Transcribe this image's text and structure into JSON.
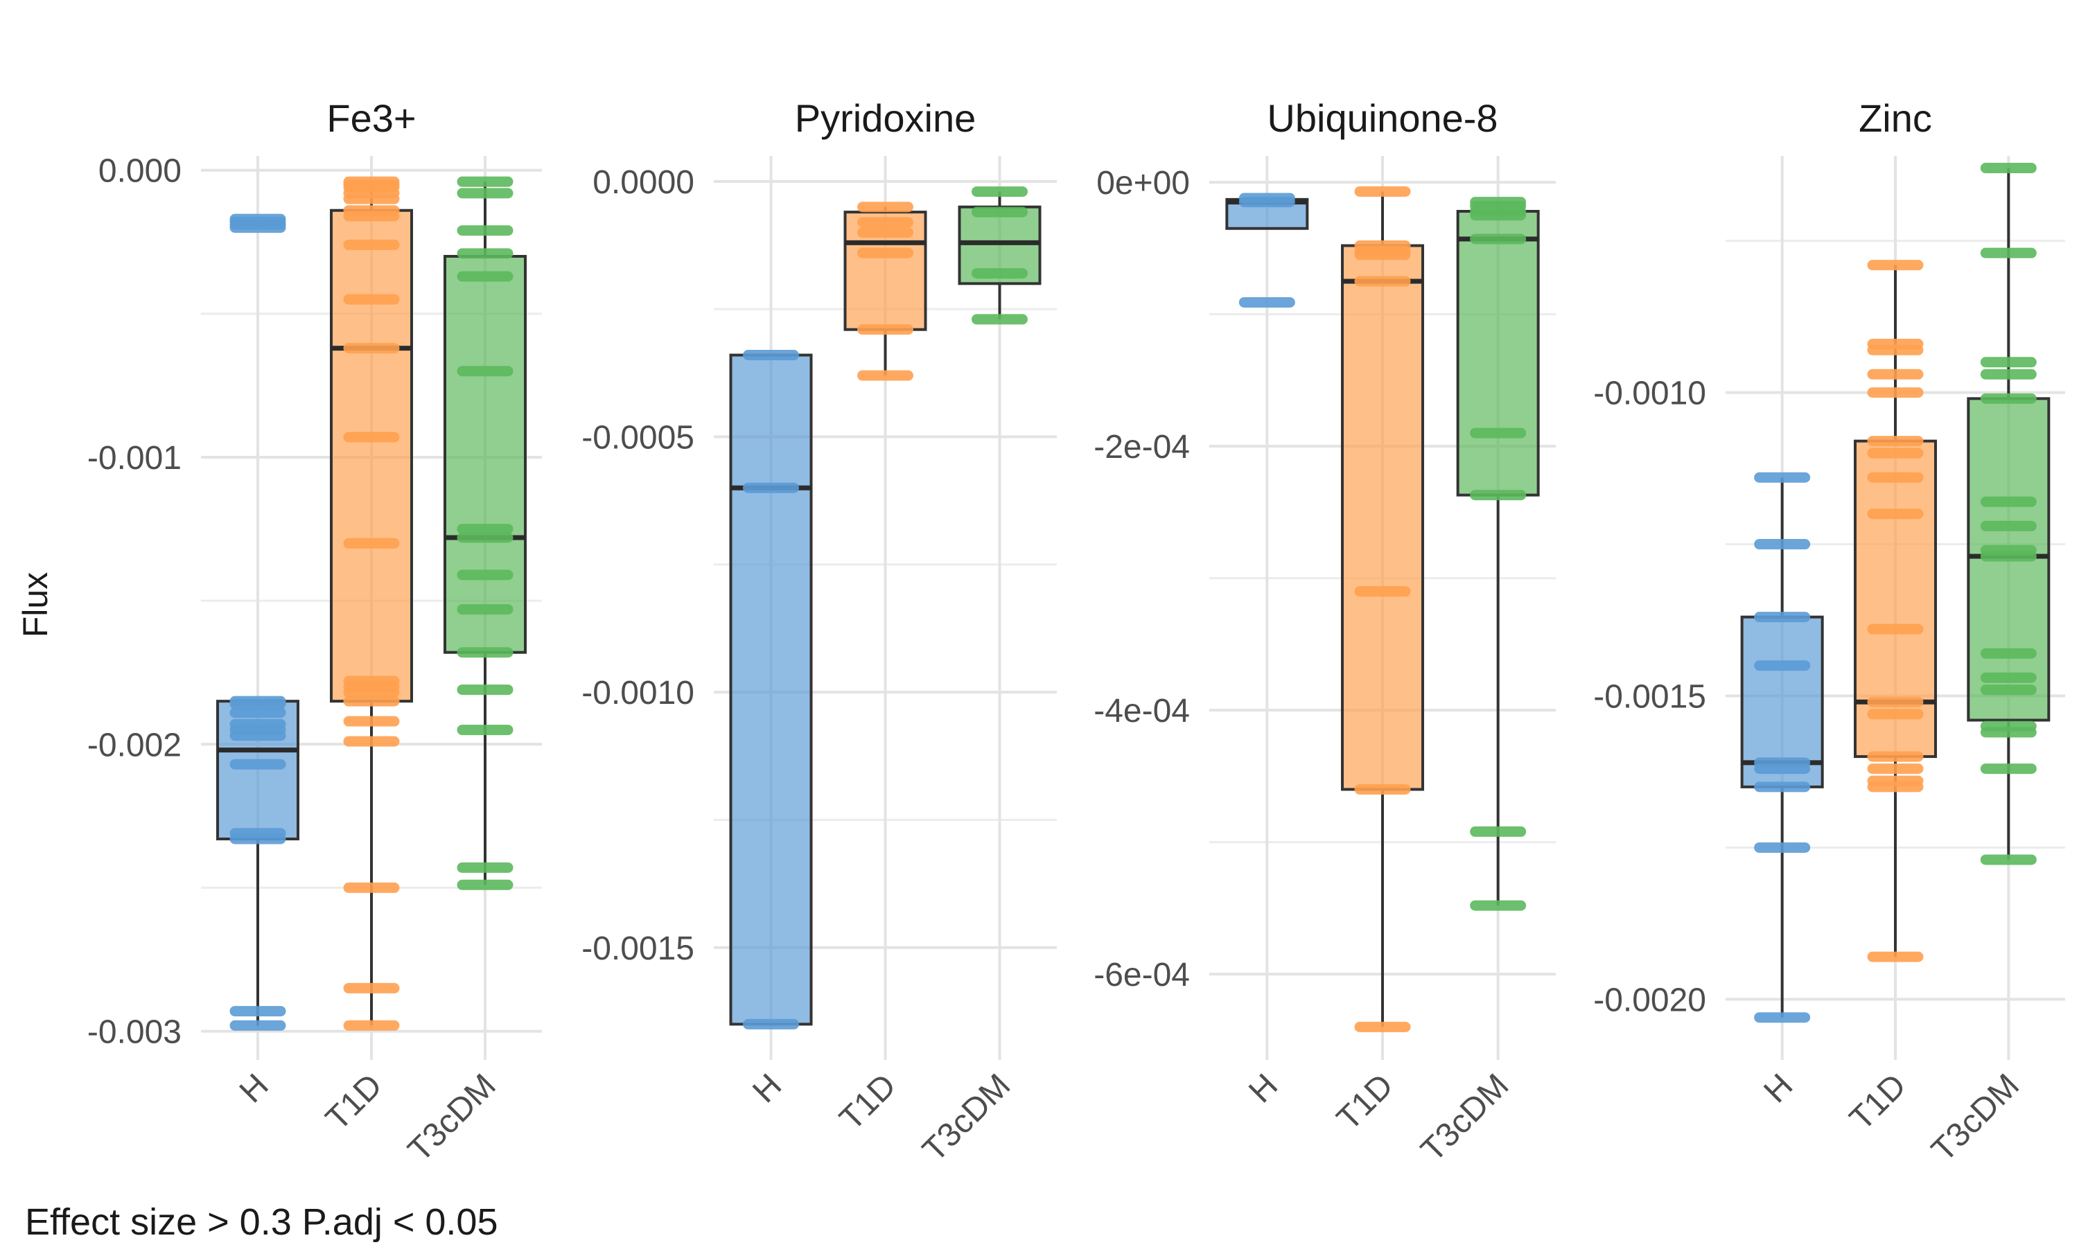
{
  "y_axis_label": "Flux",
  "caption": "Effect size > 0.3  P.adj < 0.05",
  "colors": {
    "H": "#5b9bd5",
    "T1D": "#ffa04f",
    "T3cDM": "#5cb85c"
  },
  "chart_data": [
    {
      "type": "box",
      "title": "Fe3+",
      "categories": [
        "H",
        "T1D",
        "T3cDM"
      ],
      "ylim": [
        -0.0031,
        5e-05
      ],
      "y_ticks": [
        0.0,
        -0.001,
        -0.002,
        -0.003
      ],
      "y_tick_labels": [
        "0.000",
        "-0.001",
        "-0.002",
        "-0.003"
      ],
      "boxes": [
        {
          "group": "H",
          "whisker_low": -0.00298,
          "q1": -0.00233,
          "median": -0.00202,
          "q3": -0.00185,
          "whisker_high": -0.00185,
          "points": [
            -0.00017,
            -0.00018,
            -0.00019,
            -0.0002,
            -0.00185,
            -0.00186,
            -0.00189,
            -0.00193,
            -0.00195,
            -0.00197,
            -0.00207,
            -0.00231,
            -0.00233,
            -0.00293,
            -0.00298
          ]
        },
        {
          "group": "T1D",
          "whisker_low": -0.00298,
          "q1": -0.00185,
          "median": -0.00062,
          "q3": -0.00014,
          "whisker_high": -4e-05,
          "points": [
            -4e-05,
            -5e-05,
            -6e-05,
            -8e-05,
            -0.0001,
            -0.00014,
            -0.00016,
            -0.00026,
            -0.00045,
            -0.00062,
            -0.00093,
            -0.0013,
            -0.00178,
            -0.0018,
            -0.00182,
            -0.00185,
            -0.00192,
            -0.00199,
            -0.0025,
            -0.00285,
            -0.00298
          ]
        },
        {
          "group": "T3cDM",
          "whisker_low": -0.00249,
          "q1": -0.00168,
          "median": -0.00128,
          "q3": -0.0003,
          "whisker_high": -4e-05,
          "points": [
            -4e-05,
            -8e-05,
            -0.00021,
            -0.00029,
            -0.00037,
            -0.0007,
            -0.00125,
            -0.00128,
            -0.00141,
            -0.00153,
            -0.00168,
            -0.00181,
            -0.00195,
            -0.00243,
            -0.00249
          ]
        }
      ]
    },
    {
      "type": "box",
      "title": "Pyridoxine",
      "categories": [
        "H",
        "T1D",
        "T3cDM"
      ],
      "ylim": [
        -0.00172,
        5e-05
      ],
      "y_ticks": [
        0.0,
        -0.0005,
        -0.001,
        -0.0015
      ],
      "y_tick_labels": [
        "0.0000",
        "-0.0005",
        "-0.0010",
        "-0.0015"
      ],
      "boxes": [
        {
          "group": "H",
          "whisker_low": -0.00165,
          "q1": -0.00165,
          "median": -0.0006,
          "q3": -0.00034,
          "whisker_high": -0.00034,
          "points": [
            -0.00034,
            -0.0006,
            -0.00165
          ]
        },
        {
          "group": "T1D",
          "whisker_low": -0.00038,
          "q1": -0.00029,
          "median": -0.00012,
          "q3": -6e-05,
          "whisker_high": -5e-05,
          "points": [
            -5e-05,
            -8e-05,
            -0.0001,
            -0.00014,
            -0.00029,
            -0.00038
          ]
        },
        {
          "group": "T3cDM",
          "whisker_low": -0.00027,
          "q1": -0.0002,
          "median": -0.00012,
          "q3": -5e-05,
          "whisker_high": -2e-05,
          "points": [
            -2e-05,
            -6e-05,
            -0.00018,
            -0.00027
          ]
        }
      ]
    },
    {
      "type": "box",
      "title": "Ubiquinone-8",
      "categories": [
        "H",
        "T1D",
        "T3cDM"
      ],
      "ylim": [
        -0.000665,
        2e-05
      ],
      "y_ticks": [
        0.0,
        -0.0002,
        -0.0004,
        -0.0006
      ],
      "y_tick_labels": [
        "0e+00",
        "-2e-04",
        "-4e-04",
        "-6e-04"
      ],
      "boxes": [
        {
          "group": "H",
          "whisker_low": -3.5e-05,
          "q1": -3.5e-05,
          "median": -1.5e-05,
          "q3": -1.3e-05,
          "whisker_high": -1.3e-05,
          "points": [
            -1.2e-05,
            -1.5e-05,
            -9.1e-05
          ]
        },
        {
          "group": "T1D",
          "whisker_low": -0.00064,
          "q1": -0.00046,
          "median": -7.5e-05,
          "q3": -4.8e-05,
          "whisker_high": -7e-06,
          "points": [
            -7e-06,
            -4.8e-05,
            -5.2e-05,
            -5.5e-05,
            -7.5e-05,
            -0.00031,
            -0.00046,
            -0.00064
          ]
        },
        {
          "group": "T3cDM",
          "whisker_low": -0.000548,
          "q1": -0.000237,
          "median": -4.3e-05,
          "q3": -2.2e-05,
          "whisker_high": -1.5e-05,
          "points": [
            -1.5e-05,
            -1.8e-05,
            -2.2e-05,
            -2.5e-05,
            -4.3e-05,
            -0.00019,
            -0.000237,
            -0.000492,
            -0.000548
          ]
        }
      ]
    },
    {
      "type": "box",
      "title": "Zinc",
      "categories": [
        "H",
        "T1D",
        "T3cDM"
      ],
      "ylim": [
        -0.0021,
        -0.00061
      ],
      "y_ticks": [
        -0.001,
        -0.0015,
        -0.002
      ],
      "y_tick_labels": [
        "-0.0010",
        "-0.0015",
        "-0.0020"
      ],
      "boxes": [
        {
          "group": "H",
          "whisker_low": -0.00203,
          "q1": -0.00165,
          "median": -0.00161,
          "q3": -0.00137,
          "whisker_high": -0.00114,
          "points": [
            -0.00114,
            -0.00125,
            -0.00137,
            -0.00145,
            -0.00161,
            -0.00162,
            -0.00165,
            -0.00175,
            -0.00203
          ]
        },
        {
          "group": "T1D",
          "whisker_low": -0.00193,
          "q1": -0.0016,
          "median": -0.00151,
          "q3": -0.00108,
          "whisker_high": -0.00079,
          "points": [
            -0.00079,
            -0.00092,
            -0.00093,
            -0.00097,
            -0.001,
            -0.00108,
            -0.0011,
            -0.00114,
            -0.0012,
            -0.00139,
            -0.00151,
            -0.00153,
            -0.0016,
            -0.00162,
            -0.00164,
            -0.00165,
            -0.00193
          ]
        },
        {
          "group": "T3cDM",
          "whisker_low": -0.00177,
          "q1": -0.00154,
          "median": -0.00127,
          "q3": -0.00101,
          "whisker_high": -0.00063,
          "points": [
            -0.00063,
            -0.00077,
            -0.00095,
            -0.00097,
            -0.00101,
            -0.00118,
            -0.00122,
            -0.00126,
            -0.00127,
            -0.00143,
            -0.00147,
            -0.00149,
            -0.00155,
            -0.00156,
            -0.00162,
            -0.00177
          ]
        }
      ]
    }
  ]
}
